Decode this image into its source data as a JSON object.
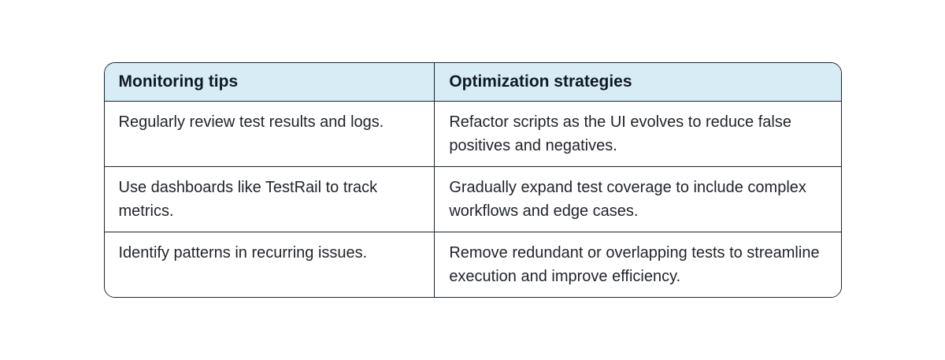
{
  "theme": {
    "page_bg": "#ffffff",
    "header_bg": "#d8ecf6",
    "border_color": "#1a2330",
    "header_text": "#101828",
    "body_text": "#1f2329"
  },
  "table": {
    "columns": [
      {
        "label": "Monitoring tips"
      },
      {
        "label": "Optimization strategies"
      }
    ],
    "rows": [
      [
        "Regularly review test results and logs.",
        "Refactor scripts as the UI evolves to reduce false positives and negatives."
      ],
      [
        "Use dashboards like TestRail to track metrics.",
        "Gradually expand test coverage to include complex workflows and edge cases."
      ],
      [
        "Identify patterns in recurring issues.",
        "Remove redundant or overlapping tests to streamline execution and improve efficiency."
      ]
    ]
  }
}
